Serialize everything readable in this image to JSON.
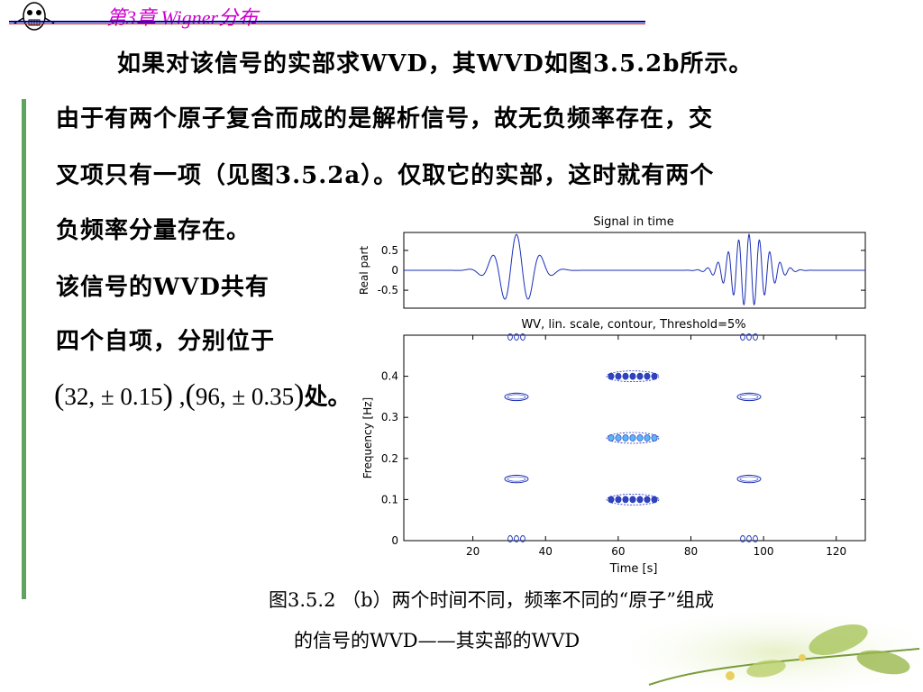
{
  "header": {
    "title": "第3章  Wigner分布"
  },
  "text": {
    "line1": "如果对该信号的实部求WVD，其WVD如图3.5.2b所示。",
    "line2": "由于有两个原子复合而成的是解析信号，故无负频率存在，交",
    "line3": "叉项只有一项（见图3.5.2a）。仅取它的实部，这时就有两个",
    "line4": "负频率分量存在。",
    "line5": "该信号的WVD共有",
    "line6": "四个自项，分别位于",
    "formula_a": "32, ± 0.15",
    "formula_sep": ",",
    "formula_b": "96, ± 0.35",
    "formula_suffix": "处。"
  },
  "caption": {
    "line1": "图3.5.2 （b）两个时间不同，频率不同的“原子”组成",
    "line2": "的信号的WVD——其实部的WVD"
  },
  "chart_data": [
    {
      "type": "line",
      "title": "Signal in time",
      "xlabel": "",
      "ylabel": "Real part",
      "xlim": [
        1,
        128
      ],
      "ylim": [
        -0.95,
        0.95
      ],
      "y_ticks": [
        0.5,
        0,
        -0.5
      ],
      "y_tick_labels": [
        "0.5",
        "0",
        "-0.5"
      ],
      "series": [
        {
          "atom_center_time": 32,
          "atom_frequency": 0.15,
          "peak_amplitude": 0.9
        },
        {
          "atom_center_time": 96,
          "atom_frequency": 0.35,
          "peak_amplitude": 0.9
        }
      ]
    },
    {
      "type": "scatter",
      "title": "WV, lin. scale, contour, Threshold=5%",
      "xlabel": "Time [s]",
      "ylabel": "Frequency [Hz]",
      "xlim": [
        1,
        128
      ],
      "ylim": [
        0,
        0.5
      ],
      "x_ticks": [
        20,
        40,
        60,
        80,
        100,
        120
      ],
      "y_ticks": [
        0,
        0.1,
        0.2,
        0.3,
        0.4
      ],
      "y_tick_labels": [
        "0",
        "0.1",
        "0.2",
        "0.3",
        "0.4"
      ],
      "components": [
        {
          "time": 32,
          "frequency": 0.15,
          "kind": "auto-term"
        },
        {
          "time": 32,
          "frequency": 0.35,
          "kind": "auto-term"
        },
        {
          "time": 96,
          "frequency": 0.15,
          "kind": "auto-term"
        },
        {
          "time": 96,
          "frequency": 0.35,
          "kind": "auto-term"
        },
        {
          "time": 64,
          "frequency": 0.1,
          "kind": "cross-term"
        },
        {
          "time": 64,
          "frequency": 0.25,
          "kind": "cross-term"
        },
        {
          "time": 64,
          "frequency": 0.4,
          "kind": "cross-term"
        },
        {
          "time": 32,
          "frequency": 0.0,
          "kind": "cross-term"
        },
        {
          "time": 96,
          "frequency": 0.0,
          "kind": "cross-term"
        },
        {
          "time": 32,
          "frequency": 0.5,
          "kind": "cross-term"
        },
        {
          "time": 96,
          "frequency": 0.5,
          "kind": "cross-term"
        }
      ],
      "line_color": "#1a2fb8",
      "fill_color": "#3fa9f5"
    }
  ]
}
